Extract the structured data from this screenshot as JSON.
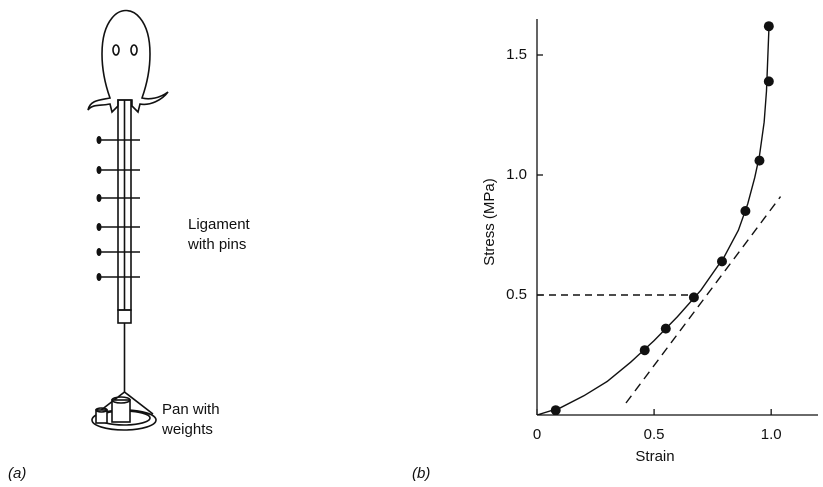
{
  "panel_a": {
    "label": "(a)",
    "ligament_label": [
      "Ligament",
      "with pins"
    ],
    "pan_label": [
      "Pan with",
      "weights"
    ]
  },
  "panel_b_label": "(b)",
  "chart_data": {
    "type": "scatter",
    "x_label": "Strain",
    "y_label": "Stress (MPa)",
    "xlim": [
      0,
      1.2
    ],
    "ylim": [
      0,
      1.65
    ],
    "xticks": [
      0,
      0.5,
      {
        "value": 1,
        "label": "1.0"
      }
    ],
    "yticks": [
      0.5,
      {
        "value": 1,
        "label": "1.0"
      },
      1.5
    ],
    "color": "#111111",
    "x": [
      0.08,
      0.46,
      0.55,
      0.67,
      0.79,
      0.89,
      0.95,
      0.99,
      0.99
    ],
    "values": [
      0.02,
      0.27,
      0.36,
      0.49,
      0.64,
      0.85,
      1.06,
      1.39,
      1.62
    ],
    "curve": {
      "x": [
        0,
        0.1,
        0.2,
        0.3,
        0.4,
        0.5,
        0.6,
        0.7,
        0.8,
        0.86,
        0.9,
        0.93,
        0.95,
        0.97,
        0.98,
        0.99
      ],
      "y": [
        0,
        0.03,
        0.08,
        0.14,
        0.22,
        0.31,
        0.41,
        0.52,
        0.66,
        0.77,
        0.88,
        0.99,
        1.08,
        1.22,
        1.35,
        1.6
      ]
    },
    "tangent": {
      "x": [
        0.38,
        1.04
      ],
      "y": [
        0.05,
        0.91
      ]
    },
    "guide": {
      "x": [
        0,
        0.67
      ],
      "y": [
        0.5,
        0.5
      ]
    }
  }
}
